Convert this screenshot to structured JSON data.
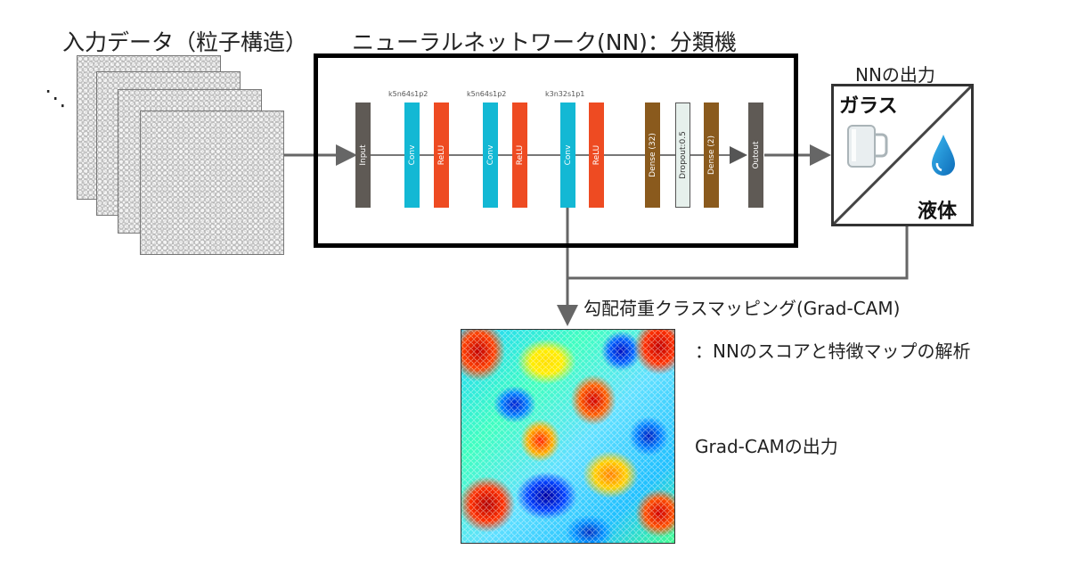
{
  "input": {
    "title": "入力データ（粒子構造）",
    "ellipsis": "⋱"
  },
  "network": {
    "title": "ニューラルネットワーク(NN)：分類機",
    "kernel_labels": [
      "k5n64s1p2",
      "k5n64s1p2",
      "k3n32s1p1"
    ],
    "layers": [
      "Input",
      "Conv",
      "ReLU",
      "Conv",
      "ReLU",
      "Conv",
      "ReLU",
      "Dense (32)",
      "Dropout:0.5",
      "Dense (2)",
      "Outout"
    ]
  },
  "output": {
    "title": "NNの出力",
    "class_glass": "ガラス",
    "class_liquid": "液体"
  },
  "gradcam": {
    "method_label": "勾配荷重クラスマッピング(Grad-CAM)",
    "method_sub": "：NNのスコアと特徴マップの解析",
    "output_label": "Grad-CAMの出力"
  },
  "colors": {
    "input_layer": "#5f5a55",
    "conv": "#13b8d4",
    "relu": "#ee4b22",
    "dense": "#8a5a1d",
    "dropout": "#e6f0ec",
    "output_layer": "#5f5a55",
    "arrow": "#666666"
  },
  "icons": {
    "glass": "beer-mug-icon",
    "liquid": "water-drop-icon"
  }
}
